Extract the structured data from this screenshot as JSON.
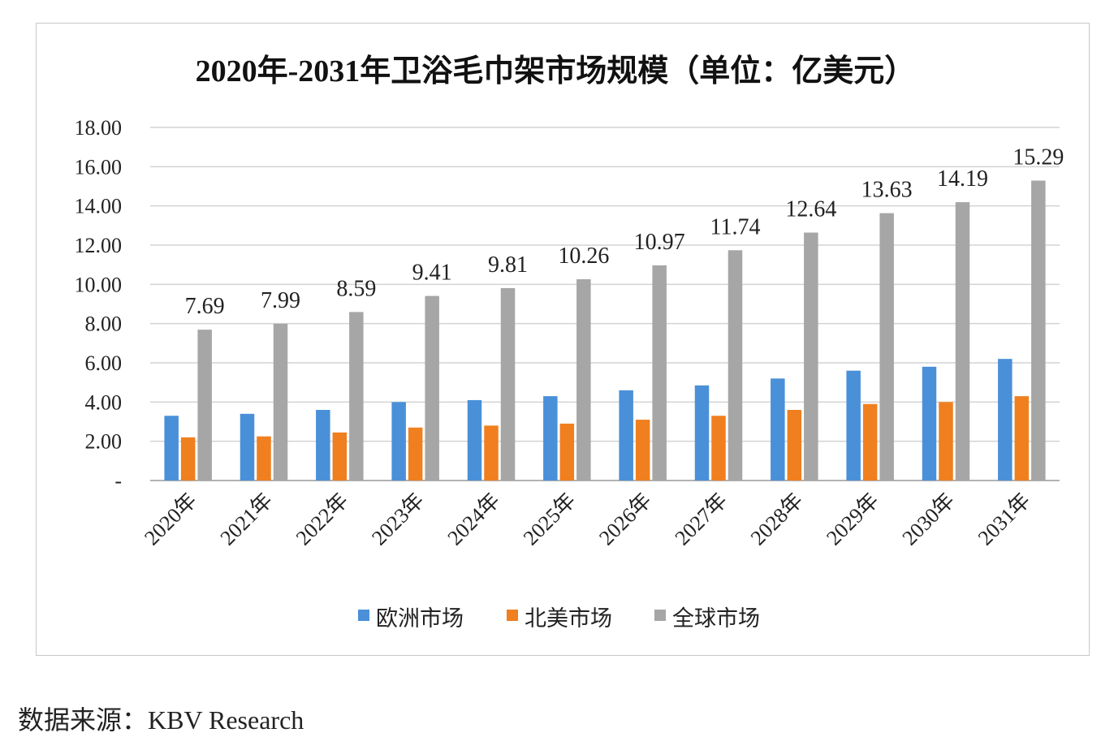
{
  "chart_data": {
    "type": "bar",
    "title": "2020年-2031年卫浴毛巾架市场规模（单位：亿美元）",
    "categories": [
      "2020年",
      "2021年",
      "2022年",
      "2023年",
      "2024年",
      "2025年",
      "2026年",
      "2027年",
      "2028年",
      "2029年",
      "2030年",
      "2031年"
    ],
    "series": [
      {
        "name": "欧洲市场",
        "color": "#4a90d9",
        "values": [
          3.3,
          3.4,
          3.6,
          4.0,
          4.1,
          4.3,
          4.6,
          4.85,
          5.2,
          5.6,
          5.8,
          6.2
        ]
      },
      {
        "name": "北美市场",
        "color": "#f07f1f",
        "values": [
          2.2,
          2.25,
          2.45,
          2.7,
          2.8,
          2.9,
          3.1,
          3.3,
          3.6,
          3.9,
          4.0,
          4.3
        ]
      },
      {
        "name": "全球市场",
        "color": "#a6a6a6",
        "values": [
          7.69,
          7.99,
          8.59,
          9.41,
          9.81,
          10.26,
          10.97,
          11.74,
          12.64,
          13.63,
          14.19,
          15.29
        ]
      }
    ],
    "data_labels": [
      "7.69",
      "7.99",
      "8.59",
      "9.41",
      "9.81",
      "10.26",
      "10.97",
      "11.74",
      "12.64",
      "13.63",
      "14.19",
      "15.29"
    ],
    "y_ticks": [
      "-",
      "2.00",
      "4.00",
      "6.00",
      "8.00",
      "10.00",
      "12.00",
      "14.00",
      "16.00",
      "18.00"
    ],
    "ylim": [
      0,
      18
    ],
    "grid": true,
    "legend_position": "bottom"
  },
  "source": {
    "label": "数据来源：",
    "name": "KBV Research"
  }
}
